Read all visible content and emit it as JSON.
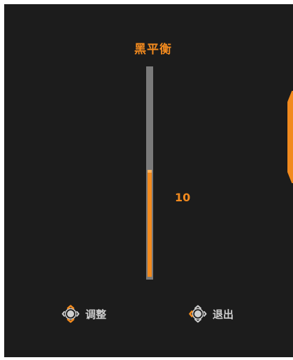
{
  "osd": {
    "title": "黑平衡",
    "value_label": "10",
    "slider": {
      "value": 10,
      "min": 0,
      "max": 20
    },
    "hints": [
      {
        "label": "调整",
        "icon": "joystick-up-down-icon"
      },
      {
        "label": "退出",
        "icon": "joystick-left-icon"
      }
    ]
  },
  "colors": {
    "accent": "#f28a1e",
    "background": "#1c1c1c",
    "track": "#7a7a7a",
    "hint_text": "#cfcfcf"
  }
}
